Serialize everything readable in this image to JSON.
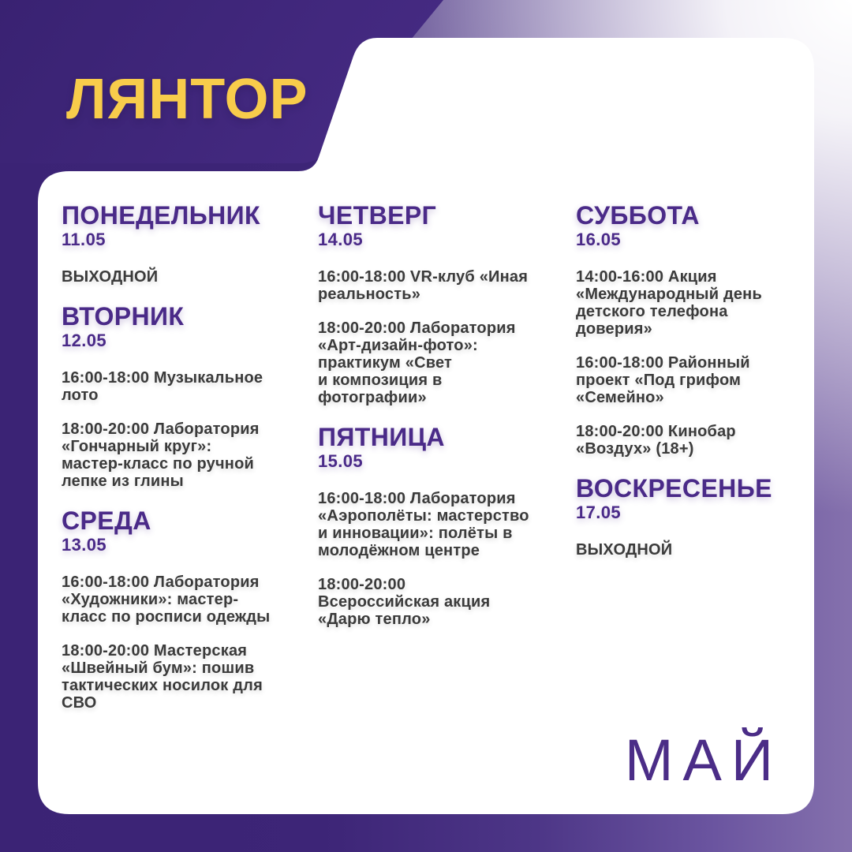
{
  "header": {
    "city": "ЛЯНТОР"
  },
  "footer": {
    "month": "МАЙ"
  },
  "colors": {
    "header_block": "#3d2478",
    "accent_yellow": "#f8cc4b",
    "heading_purple": "#4a2a88",
    "event_text": "#3b3b3b",
    "card": "#ffffff",
    "bg_dark": "#3b2375",
    "bg_light": "#8571ad"
  },
  "schedule": {
    "columns": [
      {
        "days": [
          {
            "name": "ПОНЕДЕЛЬНИК",
            "date": "11.05",
            "events": [
              "ВЫХОДНОЙ"
            ]
          },
          {
            "name": "ВТОРНИК",
            "date": "12.05",
            "events": [
              "16:00-18:00 Музыкальное\nлото",
              "18:00-20:00 Лаборатория\n«Гончарный круг»:\nмастер-класс по ручной\nлепке из глины"
            ]
          },
          {
            "name": "СРЕДА",
            "date": "13.05",
            "events": [
              "16:00-18:00 Лаборатория\n«Художники»: мастер-\nкласс по росписи одежды",
              "18:00-20:00 Мастерская\n«Швейный бум»: пошив\nтактических носилок для\nСВО"
            ]
          }
        ]
      },
      {
        "days": [
          {
            "name": "ЧЕТВЕРГ",
            "date": "14.05",
            "events": [
              "16:00-18:00 VR-клуб «Иная\nреальность»",
              "18:00-20:00 Лаборатория\n«Арт-дизайн-фото»:\nпрактикум «Свет\nи композиция в\nфотографии»"
            ]
          },
          {
            "name": "ПЯТНИЦА",
            "date": "15.05",
            "events": [
              "16:00-18:00 Лаборатория\n«Аэрополёты: мастерство\nи инновации»: полёты в\nмолодёжном центре",
              "18:00-20:00\nВсероссийская акция\n«Дарю тепло»"
            ]
          }
        ]
      },
      {
        "days": [
          {
            "name": "СУББОТА",
            "date": "16.05",
            "events": [
              "14:00-16:00 Акция\n«Международный день\nдетского телефона\nдоверия»",
              "16:00-18:00 Районный\nпроект «Под грифом\n«Семейно»",
              "18:00-20:00 Кинобар\n«Воздух» (18+)"
            ]
          },
          {
            "name": "ВОСКРЕСЕНЬЕ",
            "date": "17.05",
            "events": [
              "ВЫХОДНОЙ"
            ]
          }
        ]
      }
    ]
  }
}
